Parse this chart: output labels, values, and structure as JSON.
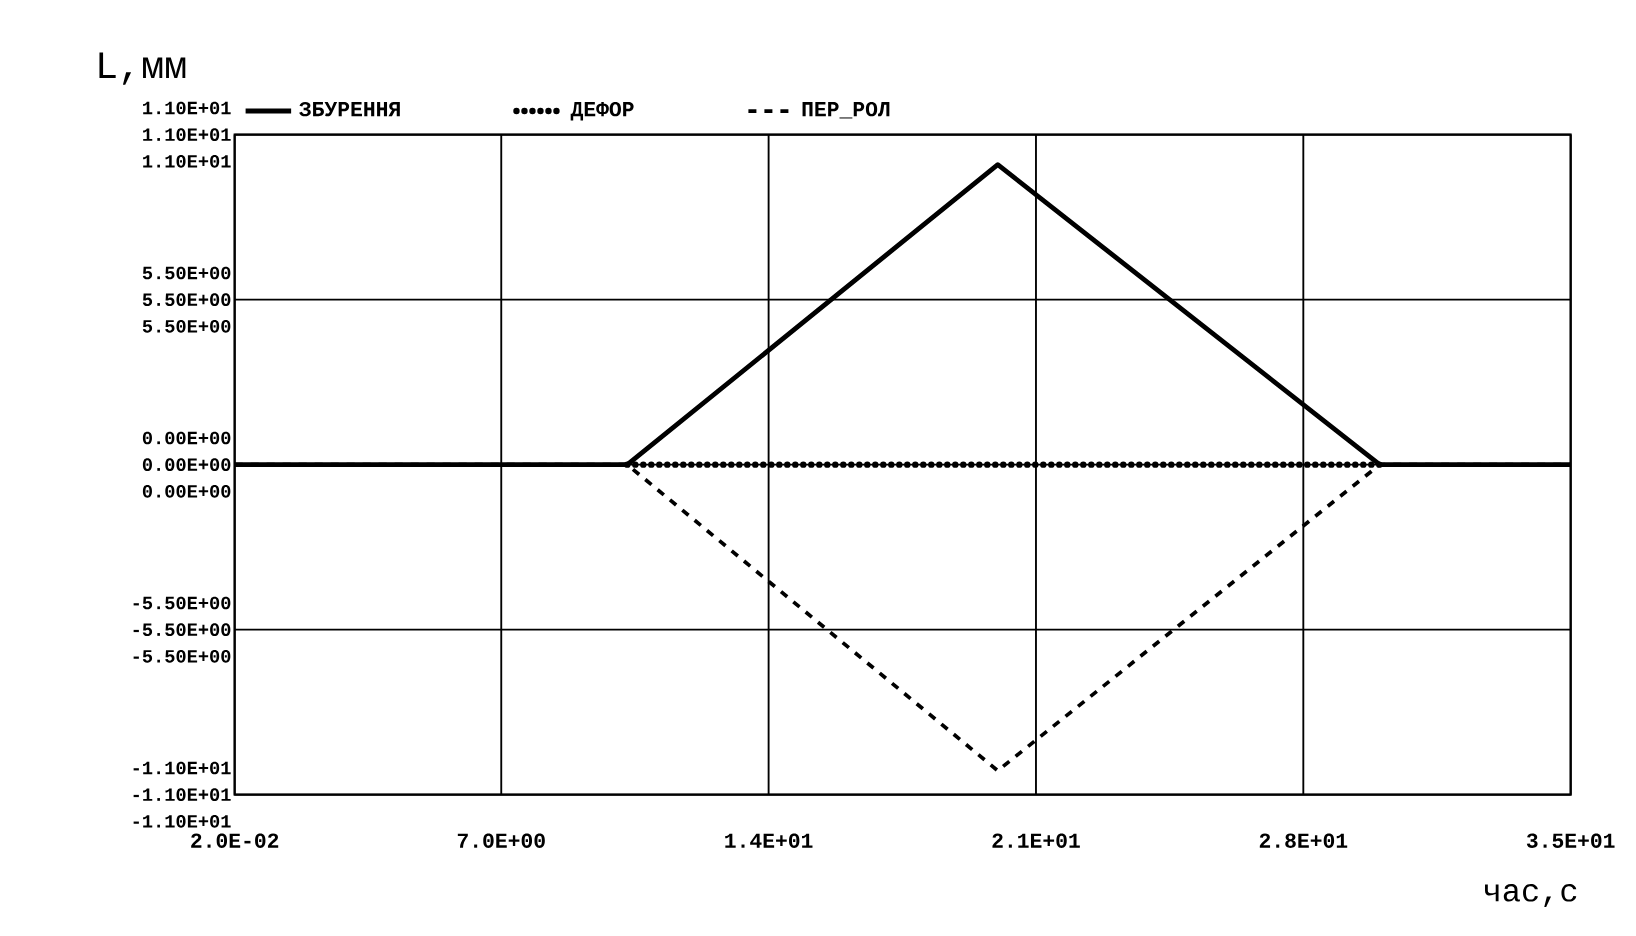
{
  "chart_data": {
    "type": "line",
    "xlabel": "час,с",
    "ylabel": "L,мм",
    "xlim": [
      0.02,
      35
    ],
    "xticks": [
      {
        "value": 0.02,
        "label": "2.0E-02"
      },
      {
        "value": 7,
        "label": "7.0E+00"
      },
      {
        "value": 14,
        "label": "1.4E+01"
      },
      {
        "value": 21,
        "label": "2.1E+01"
      },
      {
        "value": 28,
        "label": "2.8E+01"
      },
      {
        "value": 35,
        "label": "3.5E+01"
      }
    ],
    "ylim": [
      -11,
      11
    ],
    "yticks": [
      {
        "value": 11,
        "label": "1.10E+01"
      },
      {
        "value": 5.5,
        "label": "5.50E+00"
      },
      {
        "value": 0,
        "label": "0.00E+00"
      },
      {
        "value": -5.5,
        "label": "-5.50E+00"
      },
      {
        "value": -11,
        "label": "-1.10E+01"
      }
    ],
    "y2lim": [
      -11,
      11
    ],
    "y2ticks": [
      {
        "value": 11,
        "label": "1.10E+01"
      },
      {
        "value": 5.5,
        "label": "5.50E+00"
      },
      {
        "value": 0,
        "label": "0.00E+00"
      },
      {
        "value": -5.5,
        "label": "-5.50E+00"
      },
      {
        "value": -11,
        "label": "-1.10E+01"
      }
    ],
    "y3lim": [
      -11,
      11
    ],
    "y3ticks": [
      {
        "value": 11,
        "label": "1.10E+01"
      },
      {
        "value": 5.5,
        "label": "5.50E+00"
      },
      {
        "value": 0,
        "label": "0.00E+00"
      },
      {
        "value": -5.5,
        "label": "-5.50E+00"
      },
      {
        "value": -11,
        "label": "-1.10E+01"
      }
    ],
    "grid": true,
    "legend": "top",
    "series": [
      {
        "name": "ЗБУРЕННЯ",
        "color": "#000000",
        "line_style": "solid",
        "x": [
          0.02,
          10.3,
          20,
          30,
          35
        ],
        "values": [
          0,
          0,
          10,
          0,
          0
        ]
      },
      {
        "name": "ДЕФОР",
        "color": "#000000",
        "line_style": "dotted",
        "x": [
          10.3,
          30
        ],
        "values": [
          0,
          0
        ]
      },
      {
        "name": "ПЕР_РОЛ",
        "color": "#000000",
        "line_style": "dashed",
        "x": [
          0.02,
          10.3,
          20,
          30,
          35
        ],
        "values": [
          0,
          0,
          -10.2,
          0,
          0
        ]
      }
    ]
  }
}
